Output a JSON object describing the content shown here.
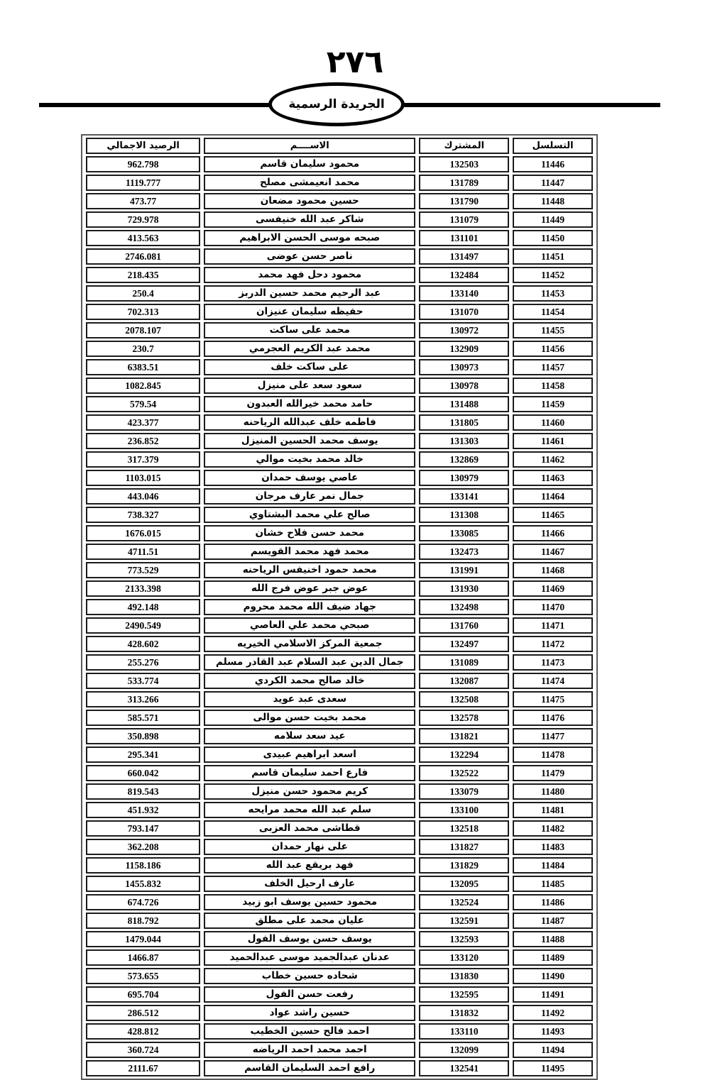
{
  "page": {
    "number_arabic": "٢٧٦",
    "gazette_label": "الجريدة الرسمية"
  },
  "table": {
    "headers": {
      "serial": "التسلسل",
      "subscriber": "المشترك",
      "name": "الاســــم",
      "balance": "الرصيد الاجمالي"
    },
    "rows": [
      {
        "serial": "11446",
        "subscriber": "132503",
        "name": "محمود سليمان قاسم",
        "balance": "962.798"
      },
      {
        "serial": "11447",
        "subscriber": "131789",
        "name": "محمد  انعيمشى مصلح",
        "balance": "1119.777"
      },
      {
        "serial": "11448",
        "subscriber": "131790",
        "name": "حسين محمود مضعان",
        "balance": "473.77"
      },
      {
        "serial": "11449",
        "subscriber": "131079",
        "name": "شاكر عبد الله خنيفسى",
        "balance": "729.978"
      },
      {
        "serial": "11450",
        "subscriber": "131101",
        "name": "صبحه موسى الحسن الابراهيم",
        "balance": "413.563"
      },
      {
        "serial": "11451",
        "subscriber": "131497",
        "name": "ناصر حسن عوضى",
        "balance": "2746.081"
      },
      {
        "serial": "11452",
        "subscriber": "132484",
        "name": "محمود دحل فهد محمد",
        "balance": "218.435"
      },
      {
        "serial": "11453",
        "subscriber": "133140",
        "name": "عبد الرحيم محمد حسين الدربز",
        "balance": "250.4"
      },
      {
        "serial": "11454",
        "subscriber": "131070",
        "name": "حفيظه سليمان عنيزان",
        "balance": "702.313"
      },
      {
        "serial": "11455",
        "subscriber": "130972",
        "name": "محمد على ساكت",
        "balance": "2078.107"
      },
      {
        "serial": "11456",
        "subscriber": "132909",
        "name": "محمد عبد الكريم العجرمي",
        "balance": "230.7"
      },
      {
        "serial": "11457",
        "subscriber": "130973",
        "name": "على ساكت  خلف",
        "balance": "6383.51"
      },
      {
        "serial": "11458",
        "subscriber": "130978",
        "name": "سعود سعد على منيزل",
        "balance": "1082.845"
      },
      {
        "serial": "11459",
        "subscriber": "131488",
        "name": "حامد محمد خيرالله العبدون",
        "balance": "579.54"
      },
      {
        "serial": "11460",
        "subscriber": "131805",
        "name": "فاطمه خلف عبدالله الرياحنه",
        "balance": "423.377"
      },
      {
        "serial": "11461",
        "subscriber": "131303",
        "name": "يوسف  محمد الحسين المنيزل",
        "balance": "236.852"
      },
      {
        "serial": "11462",
        "subscriber": "132869",
        "name": "خالد محمد بخيت موالي",
        "balance": "317.379"
      },
      {
        "serial": "11463",
        "subscriber": "130979",
        "name": "عاصي يوسف  حمدان",
        "balance": "1103.015"
      },
      {
        "serial": "11464",
        "subscriber": "133141",
        "name": "جمال نمر عارف مرجان",
        "balance": "443.046"
      },
      {
        "serial": "11465",
        "subscriber": "131308",
        "name": "صالح علي محمد البشتاوي",
        "balance": "738.327"
      },
      {
        "serial": "11466",
        "subscriber": "133085",
        "name": "محمد حسن فلاح خشان",
        "balance": "1676.015"
      },
      {
        "serial": "11467",
        "subscriber": "132473",
        "name": "محمد فهد محمد القويسم",
        "balance": "4711.51"
      },
      {
        "serial": "11468",
        "subscriber": "131991",
        "name": "محمد حمود اخنيفس الرياحنه",
        "balance": "773.529"
      },
      {
        "serial": "11469",
        "subscriber": "131930",
        "name": "عوض جبر  عوض فرج الله",
        "balance": "2133.398"
      },
      {
        "serial": "11470",
        "subscriber": "132498",
        "name": "جهاد ضيف الله محمد محروم",
        "balance": "492.148"
      },
      {
        "serial": "11471",
        "subscriber": "131760",
        "name": "صبحي محمد علي العاصي",
        "balance": "2490.549"
      },
      {
        "serial": "11472",
        "subscriber": "132497",
        "name": "جمعية المركز الاسلامي الخيريه",
        "balance": "428.602"
      },
      {
        "serial": "11473",
        "subscriber": "131089",
        "name": "جمال الدين عبد السلام عبد القادر مسلم",
        "balance": "255.276"
      },
      {
        "serial": "11474",
        "subscriber": "132087",
        "name": "خالد صالح محمد الكردي",
        "balance": "533.774"
      },
      {
        "serial": "11475",
        "subscriber": "132508",
        "name": "سعدى عبد عويد",
        "balance": "313.266"
      },
      {
        "serial": "11476",
        "subscriber": "132578",
        "name": "محمد بخيت  حسن موالى",
        "balance": "585.571"
      },
      {
        "serial": "11477",
        "subscriber": "131821",
        "name": "عيد سعد سلامه",
        "balance": "350.898"
      },
      {
        "serial": "11478",
        "subscriber": "132294",
        "name": "اسعد ابراهيم عبيدى",
        "balance": "295.341"
      },
      {
        "serial": "11479",
        "subscriber": "132522",
        "name": "فارع احمد سليمان قاسم",
        "balance": "660.042"
      },
      {
        "serial": "11480",
        "subscriber": "133079",
        "name": "كريم محمود حسن  منيزل",
        "balance": "819.543"
      },
      {
        "serial": "11481",
        "subscriber": "133100",
        "name": "سلم عبد الله محمد مرايحه",
        "balance": "451.932"
      },
      {
        "serial": "11482",
        "subscriber": "132518",
        "name": "قطاشى محمد العزبى",
        "balance": "793.147"
      },
      {
        "serial": "11483",
        "subscriber": "131827",
        "name": "على نهار حمدان",
        "balance": "362.208"
      },
      {
        "serial": "11484",
        "subscriber": "131829",
        "name": "فهد بريقع عبد الله",
        "balance": "1158.186"
      },
      {
        "serial": "11485",
        "subscriber": "132095",
        "name": "عارف  ارحيل الخلف",
        "balance": "1455.832"
      },
      {
        "serial": "11486",
        "subscriber": "132524",
        "name": "محمود حسين يوسف  ابو زبيد",
        "balance": "674.726"
      },
      {
        "serial": "11487",
        "subscriber": "132591",
        "name": "عليان محمد على مطلق",
        "balance": "818.792"
      },
      {
        "serial": "11488",
        "subscriber": "132593",
        "name": "يوسف  حسن يوسف  الفول",
        "balance": "1479.044"
      },
      {
        "serial": "11489",
        "subscriber": "133120",
        "name": "عدنان عبدالجميد موسى عبدالحميد",
        "balance": "1466.87"
      },
      {
        "serial": "11490",
        "subscriber": "131830",
        "name": "شحاده حسين خطاب",
        "balance": "573.655"
      },
      {
        "serial": "11491",
        "subscriber": "132595",
        "name": "رفعت  حسن الفول",
        "balance": "695.704"
      },
      {
        "serial": "11492",
        "subscriber": "131832",
        "name": "حسين راشد عواد",
        "balance": "286.512"
      },
      {
        "serial": "11493",
        "subscriber": "133110",
        "name": "احمد فالح حسين الخطيب",
        "balance": "428.812"
      },
      {
        "serial": "11494",
        "subscriber": "132099",
        "name": "احمد محمد احمد الرياضه",
        "balance": "360.724"
      },
      {
        "serial": "11495",
        "subscriber": "132541",
        "name": "رافع احمد السليمان القاسم",
        "balance": "2111.67"
      }
    ]
  }
}
